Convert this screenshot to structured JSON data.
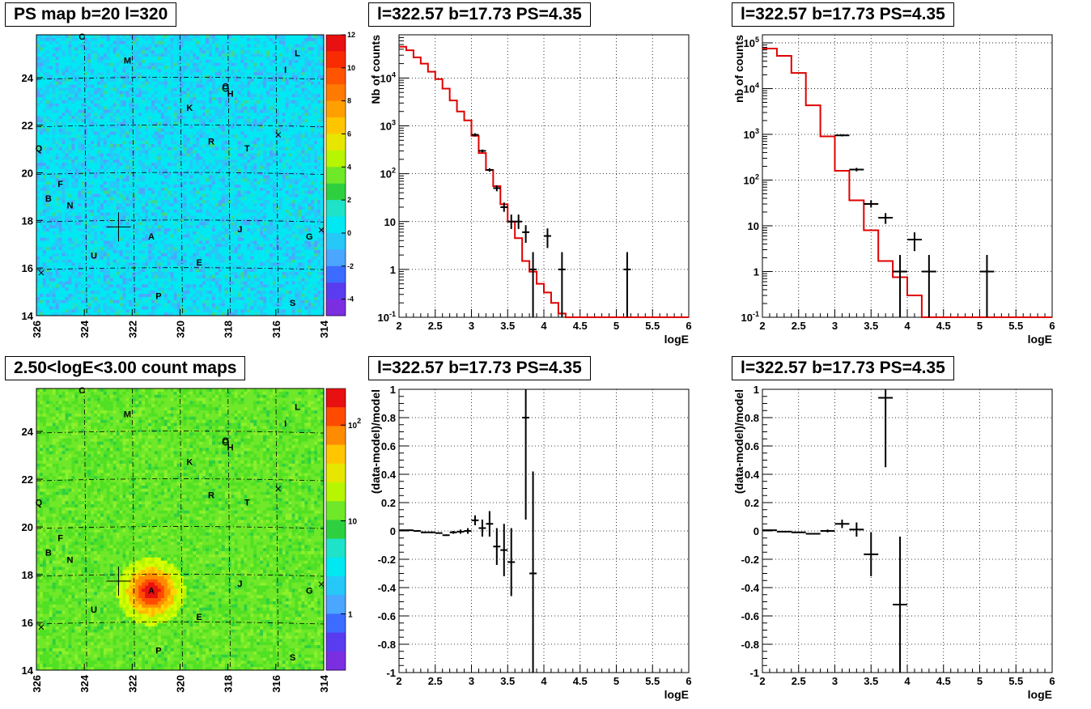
{
  "panels": {
    "map_top_title": "PS map b=20 l=320",
    "map_bottom_title": "2.50<logE<3.00 count maps",
    "spec_title_1": "l=322.57 b=17.73 PS=4.35",
    "spec_title_2": "l=322.57 b=17.73 PS=4.35",
    "res_title_1": "l=322.57 b=17.73 PS=4.35",
    "res_title_2": "l=322.57 b=17.73 PS=4.35"
  },
  "colors": {
    "model_line": "#e00000",
    "data_points": "#000000",
    "grid": "#000000"
  },
  "chart_data": [
    {
      "id": "ps_map",
      "type": "heatmap",
      "title": "PS map b=20 l=320",
      "x_ticks": [
        "326",
        "324",
        "322",
        "320",
        "318",
        "316",
        "314"
      ],
      "y_ticks": [
        "14",
        "16",
        "18",
        "20",
        "22",
        "24"
      ],
      "xlim": [
        326,
        314
      ],
      "ylim": [
        14,
        25.8
      ],
      "colorbar_ticks": [
        "12",
        "10",
        "8",
        "6",
        "4",
        "2",
        "0",
        "-2",
        "-4"
      ],
      "colorbar_range": [
        -5,
        12
      ],
      "background_level": 0.5,
      "labels": [
        {
          "text": "C",
          "l": 324.1,
          "b": 25.6
        },
        {
          "text": "M",
          "l": 322.2,
          "b": 24.6
        },
        {
          "text": "L",
          "l": 315.1,
          "b": 24.9
        },
        {
          "text": "I",
          "l": 315.6,
          "b": 24.2
        },
        {
          "text": "O",
          "l": 318.1,
          "b": 23.5
        },
        {
          "text": "H",
          "l": 317.9,
          "b": 23.2
        },
        {
          "text": "K",
          "l": 319.6,
          "b": 22.6
        },
        {
          "text": "R",
          "l": 318.7,
          "b": 21.2
        },
        {
          "text": "T",
          "l": 317.2,
          "b": 20.9
        },
        {
          "text": "Q",
          "l": 325.9,
          "b": 20.9
        },
        {
          "text": "F",
          "l": 325.0,
          "b": 19.4
        },
        {
          "text": "B",
          "l": 325.5,
          "b": 18.8
        },
        {
          "text": "N",
          "l": 324.6,
          "b": 18.5
        },
        {
          "text": "A",
          "l": 321.2,
          "b": 17.2
        },
        {
          "text": "J",
          "l": 317.5,
          "b": 17.5
        },
        {
          "text": "G",
          "l": 314.6,
          "b": 17.2
        },
        {
          "text": "U",
          "l": 323.6,
          "b": 16.4
        },
        {
          "text": "E",
          "l": 319.2,
          "b": 16.1
        },
        {
          "text": "P",
          "l": 320.9,
          "b": 14.7
        },
        {
          "text": "S",
          "l": 315.3,
          "b": 14.4
        }
      ]
    },
    {
      "id": "count_map",
      "type": "heatmap",
      "title": "2.50<logE<3.00 count maps",
      "x_ticks": [
        "326",
        "324",
        "322",
        "320",
        "318",
        "316",
        "314"
      ],
      "y_ticks": [
        "14",
        "16",
        "18",
        "20",
        "22",
        "24"
      ],
      "xlim": [
        326,
        314
      ],
      "ylim": [
        14,
        25.8
      ],
      "colorbar_ticks": [
        "10^2",
        "10",
        "1"
      ],
      "colorbar_scale": "log",
      "hotspot": {
        "l": 321.2,
        "b": 17.3
      },
      "labels": [
        {
          "text": "C",
          "l": 324.1,
          "b": 25.6
        },
        {
          "text": "M",
          "l": 322.2,
          "b": 24.6
        },
        {
          "text": "L",
          "l": 315.1,
          "b": 24.9
        },
        {
          "text": "I",
          "l": 315.6,
          "b": 24.2
        },
        {
          "text": "O",
          "l": 318.1,
          "b": 23.5
        },
        {
          "text": "H",
          "l": 317.9,
          "b": 23.2
        },
        {
          "text": "K",
          "l": 319.6,
          "b": 22.6
        },
        {
          "text": "R",
          "l": 318.7,
          "b": 21.2
        },
        {
          "text": "T",
          "l": 317.2,
          "b": 20.9
        },
        {
          "text": "Q",
          "l": 325.9,
          "b": 20.9
        },
        {
          "text": "F",
          "l": 325.0,
          "b": 19.4
        },
        {
          "text": "B",
          "l": 325.5,
          "b": 18.8
        },
        {
          "text": "N",
          "l": 324.6,
          "b": 18.5
        },
        {
          "text": "A",
          "l": 321.2,
          "b": 17.2
        },
        {
          "text": "J",
          "l": 317.5,
          "b": 17.5
        },
        {
          "text": "G",
          "l": 314.6,
          "b": 17.2
        },
        {
          "text": "U",
          "l": 323.6,
          "b": 16.4
        },
        {
          "text": "E",
          "l": 319.2,
          "b": 16.1
        },
        {
          "text": "P",
          "l": 320.9,
          "b": 14.7
        },
        {
          "text": "S",
          "l": 315.3,
          "b": 14.4
        }
      ]
    },
    {
      "id": "spec1",
      "type": "line",
      "title": "l=322.57 b=17.73 PS=4.35",
      "xlabel": "logE",
      "ylabel": "Nb of counts",
      "xlim": [
        2,
        6
      ],
      "ylim": [
        0.1,
        80000
      ],
      "yscale": "log",
      "x_ticks": [
        "2",
        "2.5",
        "3",
        "3.5",
        "4",
        "4.5",
        "5",
        "5.5",
        "6"
      ],
      "y_ticks": [
        {
          "v": 0.1,
          "t": "10^-1"
        },
        {
          "v": 1,
          "t": "1"
        },
        {
          "v": 10,
          "t": "10"
        },
        {
          "v": 100,
          "t": "10^2"
        },
        {
          "v": 1000,
          "t": "10^3"
        },
        {
          "v": 10000,
          "t": "10^4"
        }
      ],
      "grid": true,
      "model_edges": [
        2.0,
        2.1,
        2.2,
        2.3,
        2.4,
        2.5,
        2.6,
        2.7,
        2.8,
        2.9,
        3.0,
        3.1,
        3.2,
        3.3,
        3.4,
        3.5,
        3.6,
        3.7,
        3.8,
        3.9,
        4.0,
        4.1,
        4.2,
        4.3,
        6.0
      ],
      "model_values": [
        45000,
        38000,
        27000,
        20000,
        13500,
        9500,
        6000,
        3400,
        2000,
        1300,
        620,
        270,
        120,
        55,
        23,
        10,
        4.5,
        1.5,
        0.9,
        0.5,
        0.33,
        0.2,
        0.12,
        0.1
      ],
      "data_points": [
        {
          "x": 3.05,
          "y": 650,
          "xerr": 0.05,
          "lo": 600,
          "hi": 700
        },
        {
          "x": 3.15,
          "y": 300,
          "xerr": 0.05,
          "lo": 280,
          "hi": 320
        },
        {
          "x": 3.25,
          "y": 120,
          "xerr": 0.05,
          "lo": 110,
          "hi": 130
        },
        {
          "x": 3.35,
          "y": 50,
          "xerr": 0.05,
          "lo": 43,
          "hi": 57
        },
        {
          "x": 3.45,
          "y": 20,
          "xerr": 0.05,
          "lo": 16,
          "hi": 25
        },
        {
          "x": 3.55,
          "y": 10,
          "xerr": 0.05,
          "lo": 7,
          "hi": 14
        },
        {
          "x": 3.65,
          "y": 10,
          "xerr": 0.05,
          "lo": 7,
          "hi": 14
        },
        {
          "x": 3.75,
          "y": 6,
          "xerr": 0.05,
          "lo": 3.6,
          "hi": 8.4
        },
        {
          "x": 3.85,
          "y": 1,
          "xerr": 0.05,
          "lo": 0.1,
          "hi": 2.3
        },
        {
          "x": 4.05,
          "y": 5,
          "xerr": 0.05,
          "lo": 2.8,
          "hi": 7.2
        },
        {
          "x": 4.25,
          "y": 1,
          "xerr": 0.05,
          "lo": 0.1,
          "hi": 2.3
        },
        {
          "x": 5.15,
          "y": 1,
          "xerr": 0.05,
          "lo": 0.1,
          "hi": 2.3
        }
      ]
    },
    {
      "id": "spec2",
      "type": "line",
      "title": "l=322.57 b=17.73 PS=4.35",
      "xlabel": "logE",
      "ylabel": "nb of counts",
      "xlim": [
        2,
        6
      ],
      "ylim": [
        0.1,
        150000
      ],
      "yscale": "log",
      "x_ticks": [
        "2",
        "2.5",
        "3",
        "3.5",
        "4",
        "4.5",
        "5",
        "5.5",
        "6"
      ],
      "y_ticks": [
        {
          "v": 0.1,
          "t": "10^-1"
        },
        {
          "v": 1,
          "t": "1"
        },
        {
          "v": 10,
          "t": "10"
        },
        {
          "v": 100,
          "t": "10^2"
        },
        {
          "v": 1000,
          "t": "10^3"
        },
        {
          "v": 10000,
          "t": "10^4"
        },
        {
          "v": 100000,
          "t": "10^5"
        }
      ],
      "grid": true,
      "model_edges": [
        2.0,
        2.2,
        2.4,
        2.6,
        2.8,
        3.0,
        3.2,
        3.4,
        3.6,
        3.8,
        4.0,
        4.2,
        4.4,
        6.0
      ],
      "model_values": [
        75000,
        52000,
        22000,
        4300,
        900,
        160,
        36,
        8,
        1.7,
        0.75,
        0.3,
        0.1,
        0.1
      ],
      "data_points": [
        {
          "x": 3.1,
          "y": 950,
          "xerr": 0.1,
          "lo": 900,
          "hi": 1000
        },
        {
          "x": 3.3,
          "y": 170,
          "xerr": 0.1,
          "lo": 155,
          "hi": 185
        },
        {
          "x": 3.5,
          "y": 30,
          "xerr": 0.1,
          "lo": 25,
          "hi": 36
        },
        {
          "x": 3.7,
          "y": 15,
          "xerr": 0.1,
          "lo": 11,
          "hi": 19
        },
        {
          "x": 3.9,
          "y": 1,
          "xerr": 0.1,
          "lo": 0.1,
          "hi": 2.3
        },
        {
          "x": 4.1,
          "y": 5,
          "xerr": 0.1,
          "lo": 2.8,
          "hi": 7.2
        },
        {
          "x": 4.3,
          "y": 1,
          "xerr": 0.1,
          "lo": 0.1,
          "hi": 2.3
        },
        {
          "x": 5.1,
          "y": 1,
          "xerr": 0.1,
          "lo": 0.1,
          "hi": 2.3
        }
      ]
    },
    {
      "id": "res1",
      "type": "scatter",
      "title": "l=322.57 b=17.73 PS=4.35",
      "xlabel": "logE",
      "ylabel": "(data-model)/model",
      "xlim": [
        2,
        6
      ],
      "ylim": [
        -1,
        1
      ],
      "x_ticks": [
        "2",
        "2.5",
        "3",
        "3.5",
        "4",
        "4.5",
        "5",
        "5.5",
        "6"
      ],
      "y_ticks": [
        "-1",
        "-0.8",
        "-0.6",
        "-0.4",
        "-0.2",
        "0",
        "0.2",
        "0.4",
        "0.6",
        "0.8",
        "1"
      ],
      "grid": true,
      "data_points": [
        {
          "x": 2.05,
          "y": 0.005,
          "xerr": 0.05,
          "lo": 0.0,
          "hi": 0.01
        },
        {
          "x": 2.15,
          "y": 0.005,
          "xerr": 0.05,
          "lo": 0.0,
          "hi": 0.01
        },
        {
          "x": 2.25,
          "y": 0.0,
          "xerr": 0.05,
          "lo": -0.005,
          "hi": 0.005
        },
        {
          "x": 2.35,
          "y": -0.01,
          "xerr": 0.05,
          "lo": -0.015,
          "hi": -0.005
        },
        {
          "x": 2.45,
          "y": -0.01,
          "xerr": 0.05,
          "lo": -0.015,
          "hi": -0.005
        },
        {
          "x": 2.55,
          "y": -0.015,
          "xerr": 0.05,
          "lo": -0.02,
          "hi": -0.01
        },
        {
          "x": 2.65,
          "y": -0.03,
          "xerr": 0.05,
          "lo": -0.035,
          "hi": -0.025
        },
        {
          "x": 2.75,
          "y": -0.01,
          "xerr": 0.05,
          "lo": -0.02,
          "hi": 0.0
        },
        {
          "x": 2.85,
          "y": -0.005,
          "xerr": 0.05,
          "lo": -0.02,
          "hi": 0.01
        },
        {
          "x": 2.95,
          "y": 0.0,
          "xerr": 0.05,
          "lo": -0.02,
          "hi": 0.02
        },
        {
          "x": 3.05,
          "y": 0.075,
          "xerr": 0.05,
          "lo": 0.04,
          "hi": 0.11
        },
        {
          "x": 3.15,
          "y": 0.02,
          "xerr": 0.05,
          "lo": -0.04,
          "hi": 0.08
        },
        {
          "x": 3.25,
          "y": 0.05,
          "xerr": 0.05,
          "lo": -0.04,
          "hi": 0.14
        },
        {
          "x": 3.35,
          "y": -0.11,
          "xerr": 0.05,
          "lo": -0.24,
          "hi": 0.02
        },
        {
          "x": 3.45,
          "y": -0.135,
          "xerr": 0.05,
          "lo": -0.32,
          "hi": 0.05
        },
        {
          "x": 3.55,
          "y": -0.22,
          "xerr": 0.05,
          "lo": -0.46,
          "hi": 0.02
        },
        {
          "x": 3.75,
          "y": 0.8,
          "xerr": 0.05,
          "lo": 0.08,
          "hi": 1.0
        },
        {
          "x": 3.85,
          "y": -0.3,
          "xerr": 0.05,
          "lo": -1.0,
          "hi": 0.42
        }
      ]
    },
    {
      "id": "res2",
      "type": "scatter",
      "title": "l=322.57 b=17.73 PS=4.35",
      "xlabel": "logE",
      "ylabel": "(data-model)/model",
      "xlim": [
        2,
        6
      ],
      "ylim": [
        -1,
        1
      ],
      "x_ticks": [
        "2",
        "2.5",
        "3",
        "3.5",
        "4",
        "4.5",
        "5",
        "5.5",
        "6"
      ],
      "y_ticks": [
        "-1",
        "-0.8",
        "-0.6",
        "-0.4",
        "-0.2",
        "0",
        "0.2",
        "0.4",
        "0.6",
        "0.8",
        "1"
      ],
      "grid": true,
      "data_points": [
        {
          "x": 2.1,
          "y": 0.005,
          "xerr": 0.1,
          "lo": 0.0,
          "hi": 0.01
        },
        {
          "x": 2.3,
          "y": -0.005,
          "xerr": 0.1,
          "lo": -0.01,
          "hi": 0.0
        },
        {
          "x": 2.5,
          "y": -0.01,
          "xerr": 0.1,
          "lo": -0.015,
          "hi": -0.005
        },
        {
          "x": 2.7,
          "y": -0.02,
          "xerr": 0.1,
          "lo": -0.025,
          "hi": -0.015
        },
        {
          "x": 2.9,
          "y": 0.0,
          "xerr": 0.1,
          "lo": -0.01,
          "hi": 0.01
        },
        {
          "x": 3.1,
          "y": 0.05,
          "xerr": 0.1,
          "lo": 0.02,
          "hi": 0.08
        },
        {
          "x": 3.3,
          "y": 0.01,
          "xerr": 0.1,
          "lo": -0.04,
          "hi": 0.06
        },
        {
          "x": 3.5,
          "y": -0.165,
          "xerr": 0.1,
          "lo": -0.32,
          "hi": -0.01
        },
        {
          "x": 3.7,
          "y": 0.94,
          "xerr": 0.1,
          "lo": 0.45,
          "hi": 1.0
        },
        {
          "x": 3.9,
          "y": -0.52,
          "xerr": 0.1,
          "lo": -1.0,
          "hi": -0.04
        }
      ]
    }
  ]
}
